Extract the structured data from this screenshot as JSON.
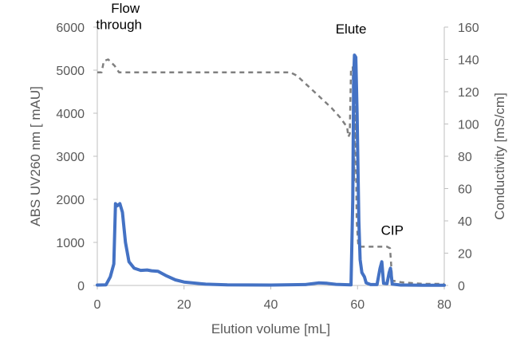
{
  "chart_data": {
    "type": "line",
    "xlabel": "Elution volume  [mL]",
    "ylabel": "ABS UV260 nm  [ mAU]",
    "y2label": "Conductivity  [mS/cm]",
    "xlim": [
      0,
      80
    ],
    "ylim": [
      0,
      6000
    ],
    "y2lim": [
      0,
      160
    ],
    "x_ticks": [
      0,
      20,
      40,
      60,
      80
    ],
    "y_ticks": [
      0,
      1000,
      2000,
      3000,
      4000,
      5000,
      6000
    ],
    "y2_ticks": [
      0,
      20,
      40,
      60,
      80,
      100,
      120,
      140,
      160
    ],
    "grid": false,
    "annotations": [
      {
        "text": "Flow",
        "x": 5,
        "y": 6330
      },
      {
        "text": "through",
        "x": 5,
        "y": 5950
      },
      {
        "text": "Elute",
        "x": 58.5,
        "y": 5850
      },
      {
        "text": "CIP",
        "x": 68,
        "y": 1180
      }
    ],
    "series": [
      {
        "axis": "left",
        "color": "#4472C4",
        "style": "solid",
        "points": [
          [
            0,
            10
          ],
          [
            2,
            15
          ],
          [
            3,
            200
          ],
          [
            3.8,
            500
          ],
          [
            4.2,
            1900
          ],
          [
            4.6,
            1850
          ],
          [
            5.2,
            1900
          ],
          [
            5.8,
            1700
          ],
          [
            6.5,
            1000
          ],
          [
            7.3,
            550
          ],
          [
            8.5,
            400
          ],
          [
            10,
            350
          ],
          [
            11.5,
            360
          ],
          [
            12.5,
            340
          ],
          [
            14,
            330
          ],
          [
            16,
            220
          ],
          [
            18,
            130
          ],
          [
            20,
            80
          ],
          [
            25,
            30
          ],
          [
            30,
            15
          ],
          [
            40,
            10
          ],
          [
            48,
            20
          ],
          [
            51,
            60
          ],
          [
            53,
            50
          ],
          [
            55,
            25
          ],
          [
            58.5,
            15
          ],
          [
            58.9,
            2000
          ],
          [
            59.1,
            4800
          ],
          [
            59.3,
            5350
          ],
          [
            59.6,
            5300
          ],
          [
            59.9,
            4000
          ],
          [
            60.3,
            1500
          ],
          [
            60.6,
            600
          ],
          [
            61,
            300
          ],
          [
            61.6,
            200
          ],
          [
            62,
            60
          ],
          [
            63,
            20
          ],
          [
            64.5,
            20
          ],
          [
            65.2,
            400
          ],
          [
            65.6,
            550
          ],
          [
            66,
            50
          ],
          [
            66.8,
            40
          ],
          [
            67.3,
            300
          ],
          [
            67.6,
            400
          ],
          [
            68,
            30
          ],
          [
            70,
            10
          ],
          [
            75,
            5
          ],
          [
            80,
            5
          ]
        ]
      },
      {
        "axis": "right",
        "color": "#808080",
        "style": "dashed",
        "points": [
          [
            0,
            132
          ],
          [
            1,
            132
          ],
          [
            1.5,
            139
          ],
          [
            2.5,
            140
          ],
          [
            4,
            136
          ],
          [
            5,
            132
          ],
          [
            10,
            132
          ],
          [
            20,
            132
          ],
          [
            30,
            132
          ],
          [
            40,
            132
          ],
          [
            44.5,
            132
          ],
          [
            46,
            130
          ],
          [
            50,
            120
          ],
          [
            54,
            110
          ],
          [
            56,
            104
          ],
          [
            57.6,
            98
          ],
          [
            57.9,
            92
          ],
          [
            58.2,
            94
          ],
          [
            58.5,
            135
          ],
          [
            58.9,
            135
          ],
          [
            59.2,
            65
          ],
          [
            59.5,
            120
          ],
          [
            59.8,
            40
          ],
          [
            60.2,
            24
          ],
          [
            61,
            24
          ],
          [
            66.8,
            24
          ],
          [
            67.5,
            23
          ],
          [
            68,
            3
          ],
          [
            70,
            2
          ],
          [
            75,
            1
          ],
          [
            80,
            1
          ]
        ]
      }
    ]
  }
}
